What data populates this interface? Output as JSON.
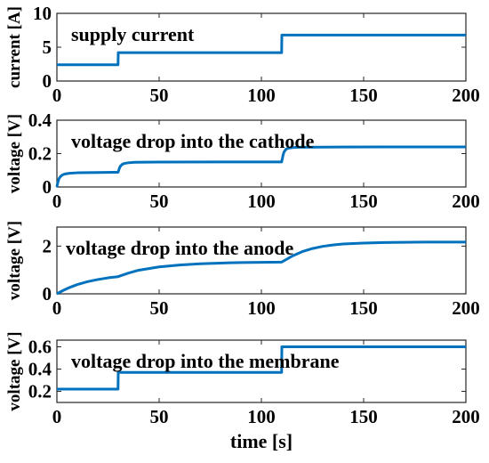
{
  "chart_data": [
    {
      "type": "line",
      "title": "supply current",
      "xlabel": "",
      "ylabel": "current [A]",
      "xlim": [
        0,
        200
      ],
      "ylim": [
        0,
        10
      ],
      "xticks": [
        0,
        50,
        100,
        150,
        200
      ],
      "yticks": [
        0,
        5,
        10
      ],
      "grid": false,
      "color": "#0072BD",
      "x": [
        0,
        29.9,
        30,
        109.9,
        110,
        200
      ],
      "y": [
        2.4,
        2.4,
        4.2,
        4.2,
        6.8,
        6.8
      ]
    },
    {
      "type": "line",
      "title": "voltage drop into the cathode",
      "xlabel": "",
      "ylabel": "voltage [V]",
      "xlim": [
        0,
        200
      ],
      "ylim": [
        0,
        0.4
      ],
      "xticks": [
        0,
        50,
        100,
        150,
        200
      ],
      "yticks": [
        0,
        0.2,
        0.4
      ],
      "grid": false,
      "color": "#0072BD",
      "x": [
        0,
        0.5,
        1,
        2,
        3,
        4,
        6,
        10,
        20,
        29.9,
        30.5,
        31,
        32,
        33,
        35,
        38,
        50,
        80,
        109.9,
        110.5,
        111,
        112,
        113,
        115,
        118,
        130,
        160,
        200
      ],
      "y": [
        0,
        0.03,
        0.05,
        0.066,
        0.074,
        0.078,
        0.082,
        0.085,
        0.087,
        0.088,
        0.11,
        0.124,
        0.136,
        0.141,
        0.145,
        0.148,
        0.149,
        0.15,
        0.15,
        0.185,
        0.208,
        0.226,
        0.232,
        0.236,
        0.238,
        0.239,
        0.24,
        0.24
      ]
    },
    {
      "type": "line",
      "title": "voltage drop into the anode",
      "xlabel": "",
      "ylabel": "voltage [V]",
      "xlim": [
        0,
        200
      ],
      "ylim": [
        0,
        2.8
      ],
      "xticks": [
        0,
        50,
        100,
        150,
        200
      ],
      "yticks": [
        0,
        2
      ],
      "grid": false,
      "color": "#0072BD",
      "x": [
        0,
        3,
        6,
        10,
        15,
        20,
        25,
        29.9,
        35,
        40,
        50,
        60,
        70,
        80,
        90,
        100,
        109.9,
        115,
        120,
        125,
        130,
        135,
        140,
        150,
        160,
        170,
        180,
        200
      ],
      "y": [
        0,
        0.14,
        0.26,
        0.39,
        0.51,
        0.6,
        0.67,
        0.72,
        0.87,
        0.99,
        1.13,
        1.21,
        1.26,
        1.29,
        1.31,
        1.32,
        1.33,
        1.58,
        1.77,
        1.9,
        1.99,
        2.05,
        2.09,
        2.13,
        2.15,
        2.16,
        2.17,
        2.17
      ]
    },
    {
      "type": "line",
      "title": "voltage drop into the membrane",
      "xlabel": "time [s]",
      "ylabel": "voltage [V]",
      "xlim": [
        0,
        200
      ],
      "ylim": [
        0.1,
        0.66
      ],
      "xticks": [
        0,
        50,
        100,
        150,
        200
      ],
      "yticks": [
        0.2,
        0.4,
        0.6
      ],
      "grid": false,
      "color": "#0072BD",
      "x": [
        0,
        29.9,
        30,
        109.9,
        110,
        200
      ],
      "y": [
        0.22,
        0.22,
        0.37,
        0.37,
        0.6,
        0.6
      ]
    }
  ]
}
